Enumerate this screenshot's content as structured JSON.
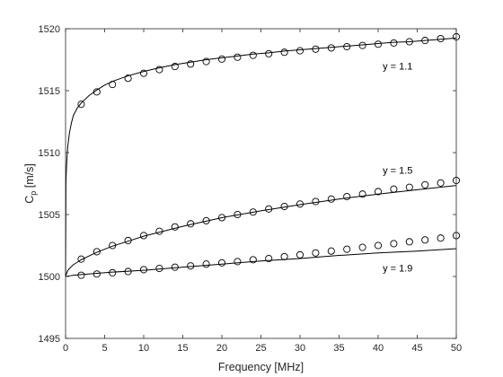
{
  "chart_data": {
    "type": "line",
    "title": "",
    "xlabel": "Frequency [MHz]",
    "ylabel_main": "C",
    "ylabel_sub": "p",
    "ylabel_unit": " [m/s]",
    "xlim": [
      0,
      50
    ],
    "ylim": [
      1495,
      1520
    ],
    "xticks": [
      0,
      5,
      10,
      15,
      20,
      25,
      30,
      35,
      40,
      45,
      50
    ],
    "yticks": [
      1495,
      1500,
      1505,
      1510,
      1515,
      1520
    ],
    "grid": false,
    "line_color": "#000000",
    "series": [
      {
        "label": "y = 1.1",
        "label_pos": [
          42.5,
          1516.7
        ],
        "line": {
          "x": [
            0,
            0.05,
            0.1,
            0.2,
            0.3,
            0.5,
            0.75,
            1,
            1.5,
            2,
            3,
            4,
            5,
            6,
            8,
            10,
            12,
            14,
            16,
            18,
            20,
            22,
            24,
            26,
            28,
            30,
            32,
            34,
            36,
            38,
            40,
            42,
            44,
            46,
            48,
            50
          ],
          "y": [
            1500,
            1507.6,
            1508.6,
            1509.8,
            1510.6,
            1511.6,
            1512.4,
            1513.0,
            1513.6,
            1514.0,
            1514.6,
            1515.05,
            1515.45,
            1515.75,
            1516.2,
            1516.55,
            1516.85,
            1517.1,
            1517.3,
            1517.5,
            1517.65,
            1517.8,
            1517.95,
            1518.05,
            1518.2,
            1518.3,
            1518.4,
            1518.5,
            1518.6,
            1518.7,
            1518.8,
            1518.9,
            1518.95,
            1519.05,
            1519.15,
            1519.25
          ]
        },
        "markers": {
          "x": [
            2,
            4,
            6,
            8,
            10,
            12,
            14,
            16,
            18,
            20,
            22,
            24,
            26,
            28,
            30,
            32,
            34,
            36,
            38,
            40,
            42,
            44,
            46,
            48,
            50
          ],
          "y": [
            1513.9,
            1514.9,
            1515.5,
            1516.0,
            1516.4,
            1516.7,
            1516.95,
            1517.15,
            1517.35,
            1517.55,
            1517.7,
            1517.85,
            1517.98,
            1518.1,
            1518.22,
            1518.35,
            1518.45,
            1518.55,
            1518.65,
            1518.75,
            1518.85,
            1518.95,
            1519.05,
            1519.2,
            1519.35
          ]
        }
      },
      {
        "label": "y = 1.5",
        "label_pos": [
          42.5,
          1508.3
        ],
        "line": {
          "x": [
            0,
            0.25,
            0.5,
            1,
            1.5,
            2,
            3,
            4,
            6,
            8,
            10,
            15,
            20,
            25,
            30,
            35,
            40,
            45,
            50
          ],
          "y": [
            1500,
            1500.45,
            1500.65,
            1500.95,
            1501.15,
            1501.35,
            1501.65,
            1501.95,
            1502.45,
            1502.85,
            1503.25,
            1504.05,
            1504.75,
            1505.3,
            1505.8,
            1506.25,
            1506.65,
            1507.0,
            1507.35
          ]
        },
        "markers": {
          "x": [
            2,
            4,
            6,
            8,
            10,
            12,
            14,
            16,
            18,
            20,
            22,
            24,
            26,
            28,
            30,
            32,
            34,
            36,
            38,
            40,
            42,
            44,
            46,
            48,
            50
          ],
          "y": [
            1501.4,
            1502.0,
            1502.5,
            1502.9,
            1503.3,
            1503.65,
            1504.0,
            1504.25,
            1504.5,
            1504.75,
            1505.0,
            1505.2,
            1505.45,
            1505.65,
            1505.85,
            1506.05,
            1506.25,
            1506.45,
            1506.65,
            1506.85,
            1507.05,
            1507.2,
            1507.4,
            1507.55,
            1507.75
          ]
        }
      },
      {
        "label": "y = 1.9",
        "label_pos": [
          42.5,
          1500.4
        ],
        "line": {
          "x": [
            0,
            0.5,
            1,
            2,
            4,
            6,
            10,
            15,
            20,
            25,
            30,
            35,
            40,
            45,
            50
          ],
          "y": [
            1500,
            1500.05,
            1500.1,
            1500.15,
            1500.25,
            1500.35,
            1500.5,
            1500.75,
            1501.0,
            1501.25,
            1501.45,
            1501.7,
            1501.9,
            1502.05,
            1502.25
          ]
        },
        "markers": {
          "x": [
            2,
            4,
            6,
            8,
            10,
            12,
            14,
            16,
            18,
            20,
            22,
            24,
            26,
            28,
            30,
            32,
            34,
            36,
            38,
            40,
            42,
            44,
            46,
            48,
            50
          ],
          "y": [
            1500.1,
            1500.2,
            1500.3,
            1500.4,
            1500.55,
            1500.65,
            1500.75,
            1500.85,
            1501.0,
            1501.1,
            1501.2,
            1501.35,
            1501.45,
            1501.6,
            1501.75,
            1501.9,
            1502.05,
            1502.2,
            1502.35,
            1502.5,
            1502.65,
            1502.8,
            1502.95,
            1503.1,
            1503.3
          ]
        }
      }
    ]
  }
}
